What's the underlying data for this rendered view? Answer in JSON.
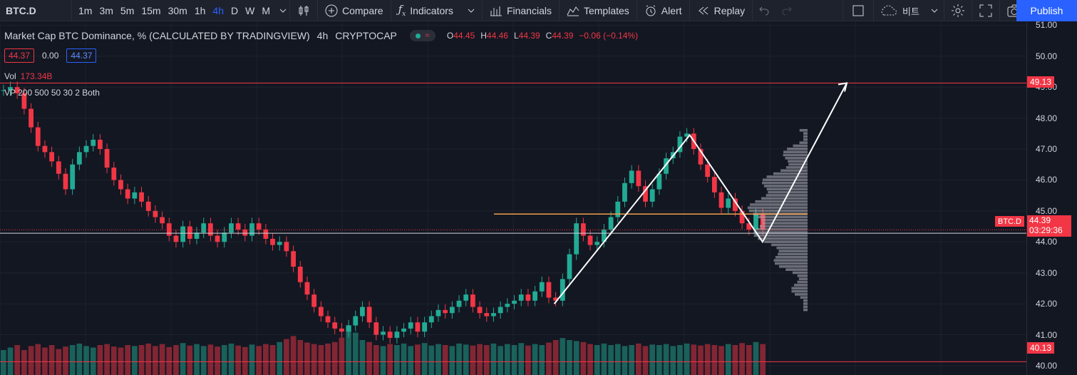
{
  "toolbar": {
    "symbol": "BTC.D",
    "intervals": [
      "1m",
      "3m",
      "5m",
      "15m",
      "30m",
      "1h",
      "4h",
      "D",
      "W",
      "M"
    ],
    "active_interval": "4h",
    "compare_label": "Compare",
    "indicators_label": "Indicators",
    "financials_label": "Financials",
    "templates_label": "Templates",
    "alert_label": "Alert",
    "replay_label": "Replay",
    "layout_label": "비트",
    "publish_label": "Publish"
  },
  "legend": {
    "title": "Market Cap BTC Dominance, % (CALCULATED BY TRADINGVIEW)",
    "interval": "4h",
    "exchange": "CRYPTOCAP",
    "open_label": "O",
    "open": "44.45",
    "high_label": "H",
    "high": "44.46",
    "low_label": "L",
    "low": "44.39",
    "close_label": "C",
    "close": "44.39",
    "change": "−0.06 (−0.14%)",
    "input_a": "44.37",
    "input_b": "0.00",
    "input_c": "44.37"
  },
  "indicators": {
    "vol_label": "Vol",
    "vol_value": "173.34B",
    "vp_label": "VP 200 500 50 30 2 Both"
  },
  "price_axis": {
    "ticks": [
      "51.00",
      "50.00",
      "49.00",
      "48.00",
      "47.00",
      "46.00",
      "45.00",
      "44.00",
      "43.00",
      "42.00",
      "41.00",
      "40.00"
    ],
    "tag_top": "49.13",
    "tag_bottom": "40.13",
    "symbol_tag": "BTC.D",
    "last_price": "44.39",
    "countdown": "03:29:36"
  },
  "colors": {
    "up": "#22ab94",
    "down": "#f23645",
    "accent": "#2962ff",
    "poc_line": "#f0a04b",
    "background": "#131722"
  },
  "chart_data": {
    "type": "candlestick",
    "ylim": [
      39.7,
      51.1
    ],
    "close_series": [
      48.9,
      49.0,
      48.8,
      48.3,
      47.7,
      47.1,
      46.9,
      46.6,
      46.2,
      45.7,
      46.5,
      46.9,
      47.1,
      47.3,
      47.0,
      46.4,
      46.0,
      45.7,
      45.4,
      45.6,
      45.3,
      45.0,
      44.8,
      44.6,
      44.2,
      44.0,
      44.5,
      44.1,
      44.3,
      44.6,
      44.2,
      44.0,
      44.3,
      44.6,
      44.4,
      44.2,
      44.6,
      44.4,
      44.1,
      43.9,
      44.0,
      43.7,
      43.2,
      42.7,
      42.3,
      41.9,
      41.6,
      41.4,
      41.2,
      41.1,
      41.3,
      41.6,
      41.9,
      41.4,
      41.0,
      41.1,
      40.9,
      41.1,
      41.2,
      41.4,
      41.1,
      41.4,
      41.6,
      41.8,
      41.7,
      41.9,
      42.1,
      42.3,
      41.9,
      41.7,
      41.6,
      41.7,
      41.9,
      42.0,
      42.1,
      42.3,
      42.1,
      42.4,
      42.7,
      42.2,
      42.1,
      42.8,
      43.6,
      44.6,
      44.2,
      43.9,
      44.0,
      44.4,
      44.8,
      45.3,
      45.9,
      46.3,
      45.8,
      45.3,
      45.7,
      46.2,
      46.7,
      46.9,
      47.4,
      47.5,
      47.0,
      46.5,
      46.1,
      45.6,
      45.1,
      45.4,
      45.0,
      44.6,
      44.4,
      44.9,
      44.4
    ],
    "volume_relative": [
      0.5,
      0.55,
      0.6,
      0.5,
      0.58,
      0.62,
      0.55,
      0.6,
      0.52,
      0.57,
      0.6,
      0.63,
      0.58,
      0.55,
      0.6,
      0.62,
      0.57,
      0.55,
      0.6,
      0.58,
      0.6,
      0.63,
      0.58,
      0.62,
      0.56,
      0.6,
      0.64,
      0.59,
      0.62,
      0.58,
      0.61,
      0.57,
      0.6,
      0.63,
      0.59,
      0.56,
      0.61,
      0.58,
      0.62,
      0.6,
      0.66,
      0.72,
      0.78,
      0.7,
      0.65,
      0.62,
      0.6,
      0.63,
      0.66,
      0.75,
      1.0,
      0.85,
      0.7,
      0.66,
      0.6,
      0.58,
      0.62,
      0.6,
      0.63,
      0.58,
      0.61,
      0.64,
      0.59,
      0.62,
      0.6,
      0.58,
      0.63,
      0.61,
      0.59,
      0.62,
      0.6,
      0.63,
      0.58,
      0.62,
      0.6,
      0.64,
      0.59,
      0.62,
      0.6,
      0.65,
      0.7,
      0.74,
      0.7,
      0.68,
      0.66,
      0.62,
      0.6,
      0.63,
      0.6,
      0.62,
      0.58,
      0.6,
      0.63,
      0.58,
      0.61,
      0.6,
      0.62,
      0.58,
      0.6,
      0.63,
      0.61,
      0.59,
      0.62,
      0.6,
      0.58,
      0.62,
      0.6,
      0.64,
      0.6,
      0.66,
      0.62
    ],
    "horizontal_lines": [
      49.13,
      44.39,
      44.28,
      44.9,
      40.13
    ],
    "poc": 44.9,
    "drawing_path": [
      [
        0.54,
        42.0
      ],
      [
        0.672,
        47.45
      ],
      [
        0.743,
        44.0
      ],
      [
        0.825,
        49.13
      ]
    ]
  }
}
